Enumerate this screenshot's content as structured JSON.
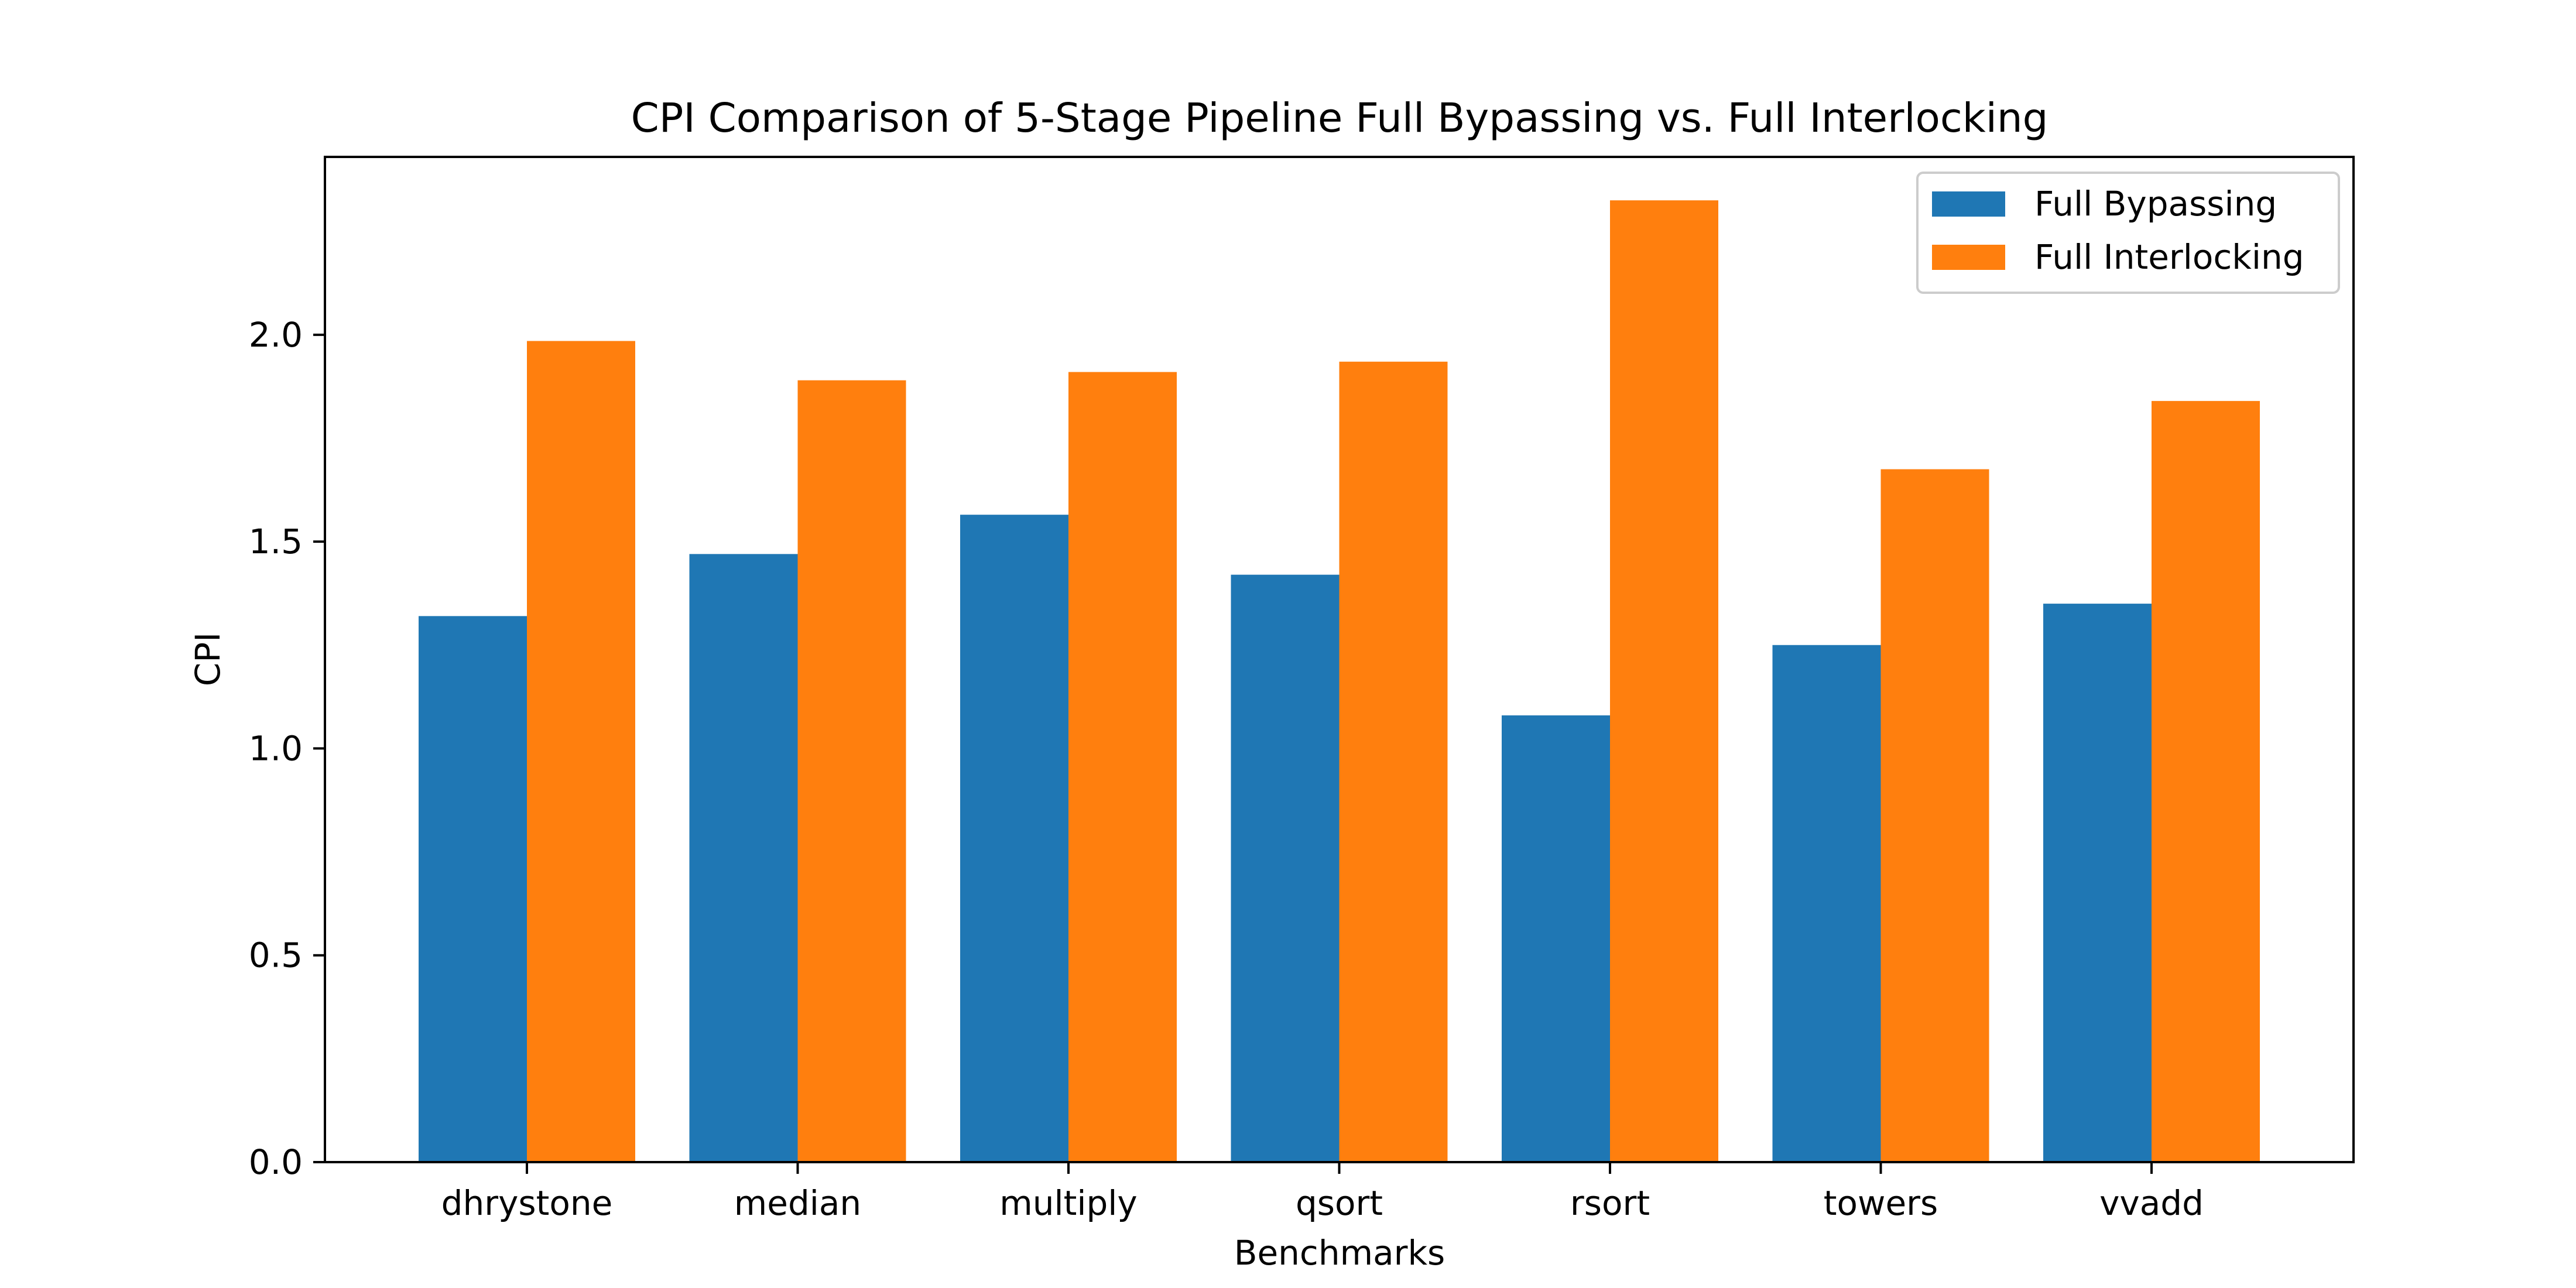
{
  "chart_data": {
    "type": "bar",
    "title": "CPI Comparison of 5-Stage Pipeline Full Bypassing vs. Full Interlocking",
    "xlabel": "Benchmarks",
    "ylabel": "CPI",
    "categories": [
      "dhrystone",
      "median",
      "multiply",
      "qsort",
      "rsort",
      "towers",
      "vvadd"
    ],
    "series": [
      {
        "name": "Full Bypassing",
        "color": "#1f77b4",
        "values": [
          1.32,
          1.47,
          1.565,
          1.42,
          1.08,
          1.25,
          1.35
        ]
      },
      {
        "name": "Full Interlocking",
        "color": "#ff7f0e",
        "values": [
          1.985,
          1.89,
          1.91,
          1.935,
          2.325,
          1.675,
          1.84
        ]
      }
    ],
    "ylim": [
      0,
      2.43
    ],
    "yticks": [
      "0.0",
      "0.5",
      "1.0",
      "1.5",
      "2.0"
    ],
    "grid": false,
    "legend_position": "top-right"
  }
}
